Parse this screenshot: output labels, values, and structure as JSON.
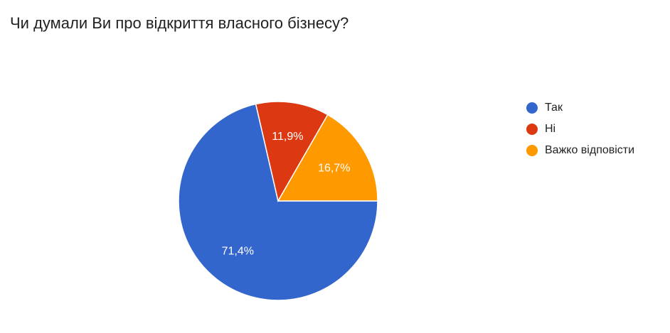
{
  "chart_data": {
    "type": "pie",
    "title": "Чи думали Ви про відкриття власного бізнесу?",
    "categories": [
      "Так",
      "Ні",
      "Важко відповісти"
    ],
    "values": [
      71.4,
      11.9,
      16.7
    ],
    "value_labels": [
      "71,4%",
      "11,9%",
      "16,7%"
    ],
    "colors": [
      "#3366cc",
      "#dc3912",
      "#ff9900"
    ],
    "legend": "right"
  }
}
